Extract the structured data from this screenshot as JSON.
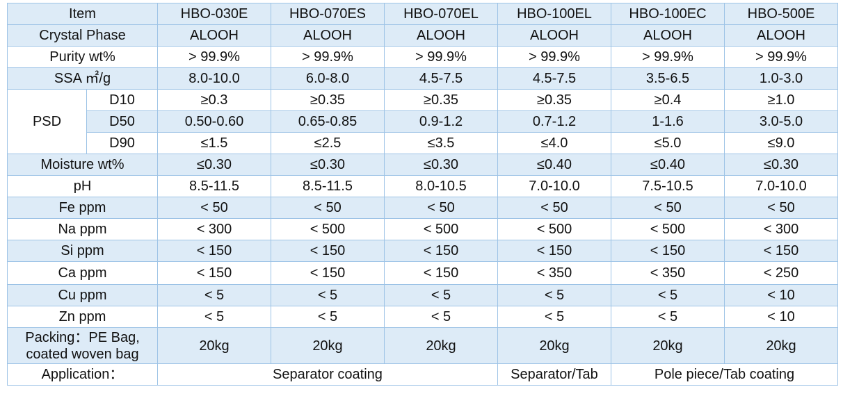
{
  "table": {
    "header": {
      "label": "Item",
      "products": [
        "HBO-030E",
        "HBO-070ES",
        "HBO-070EL",
        "HBO-100EL",
        "HBO-100EC",
        "HBO-500E"
      ]
    },
    "rows": [
      {
        "label": "Crystal Phase",
        "values": [
          "ALOOH",
          "ALOOH",
          "ALOOH",
          "ALOOH",
          "ALOOH",
          "ALOOH"
        ]
      },
      {
        "label": "Purity wt%",
        "values": [
          "> 99.9%",
          "> 99.9%",
          "> 99.9%",
          "> 99.9%",
          "> 99.9%",
          "> 99.9%"
        ]
      },
      {
        "label": "SSA ㎡/g",
        "values": [
          "8.0-10.0",
          "6.0-8.0",
          "4.5-7.5",
          "4.5-7.5",
          "3.5-6.5",
          "1.0-3.0"
        ]
      }
    ],
    "psd": {
      "label": "PSD",
      "rows": [
        {
          "label": "D10",
          "values": [
            "≥0.3",
            "≥0.35",
            "≥0.35",
            "≥0.35",
            "≥0.4",
            "≥1.0"
          ]
        },
        {
          "label": "D50",
          "values": [
            "0.50-0.60",
            "0.65-0.85",
            "0.9-1.2",
            "0.7-1.2",
            "1-1.6",
            "3.0-5.0"
          ]
        },
        {
          "label": "D90",
          "values": [
            "≤1.5",
            "≤2.5",
            "≤3.5",
            "≤4.0",
            "≤5.0",
            "≤9.0"
          ]
        }
      ]
    },
    "rows2": [
      {
        "label": "Moisture wt%",
        "values": [
          "≤0.30",
          "≤0.30",
          "≤0.30",
          "≤0.40",
          "≤0.40",
          "≤0.30"
        ]
      },
      {
        "label": "pH",
        "values": [
          "8.5-11.5",
          "8.5-11.5",
          "8.0-10.5",
          "7.0-10.0",
          "7.5-10.5",
          "7.0-10.0"
        ]
      },
      {
        "label": "Fe ppm",
        "values": [
          "< 50",
          "< 50",
          "< 50",
          "< 50",
          "< 50",
          "< 50"
        ]
      },
      {
        "label": "Na ppm",
        "values": [
          "< 300",
          "< 500",
          "< 500",
          "< 500",
          "< 500",
          "< 300"
        ]
      },
      {
        "label": "Si ppm",
        "values": [
          "< 150",
          "< 150",
          "< 150",
          "< 150",
          "< 150",
          "< 150"
        ]
      },
      {
        "label": "Ca ppm",
        "values": [
          "< 150",
          "< 150",
          "< 150",
          "< 350",
          "< 350",
          "< 250"
        ]
      },
      {
        "label": "Cu ppm",
        "values": [
          "< 5",
          "< 5",
          "< 5",
          "< 5",
          "< 5",
          "< 10"
        ]
      },
      {
        "label": "Zn ppm",
        "values": [
          "< 5",
          "< 5",
          "< 5",
          "< 5",
          "< 5",
          "< 10"
        ]
      }
    ],
    "packing": {
      "label_line1": "Packing：PE Bag,",
      "label_line2": "coated woven bag",
      "values": [
        "20kg",
        "20kg",
        "20kg",
        "20kg",
        "20kg",
        "20kg"
      ]
    },
    "application": {
      "label": "Application：",
      "groups": [
        "Separator coating",
        "Separator/Tab",
        "Pole piece/Tab coating"
      ]
    }
  },
  "colors": {
    "row_shade": "#ddebf7",
    "border": "#9dc3e6",
    "text": "#111111"
  }
}
